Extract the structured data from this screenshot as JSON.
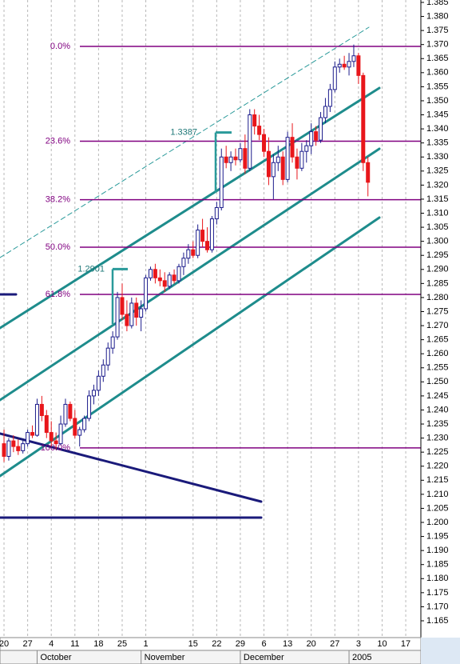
{
  "chart_data": {
    "type": "candlestick",
    "x": [
      0,
      1,
      2,
      3,
      4,
      5,
      6,
      7,
      8,
      9,
      10,
      11,
      12,
      13,
      14,
      15,
      16,
      17,
      18,
      19,
      20,
      21,
      22,
      23,
      24,
      25,
      26,
      27,
      28,
      29,
      30,
      31,
      32,
      33,
      34,
      35,
      36,
      37,
      38,
      39,
      40,
      41,
      42,
      43,
      44,
      45,
      46,
      47,
      48,
      49,
      50,
      51,
      52,
      53,
      54,
      55,
      56,
      57,
      58,
      59,
      60,
      61,
      62,
      63,
      64,
      65,
      66,
      67,
      68,
      69,
      70,
      71,
      72,
      73,
      74,
      75,
      76,
      77
    ],
    "open": [
      1.228,
      1.2235,
      1.229,
      1.227,
      1.2255,
      1.228,
      1.232,
      1.231,
      1.242,
      1.238,
      1.232,
      1.229,
      1.228,
      1.235,
      1.242,
      1.237,
      1.231,
      1.233,
      1.237,
      1.245,
      1.247,
      1.252,
      1.256,
      1.262,
      1.266,
      1.28,
      1.274,
      1.27,
      1.278,
      1.273,
      1.276,
      1.287,
      1.29,
      1.287,
      1.286,
      1.284,
      1.288,
      1.286,
      1.291,
      1.294,
      1.297,
      1.295,
      1.304,
      1.3,
      1.297,
      1.308,
      1.312,
      1.33,
      1.328,
      1.33,
      1.329,
      1.333,
      1.326,
      1.345,
      1.341,
      1.338,
      1.332,
      1.323,
      1.328,
      1.33,
      1.322,
      1.337,
      1.33,
      1.326,
      1.332,
      1.334,
      1.339,
      1.336,
      1.344,
      1.348,
      1.354,
      1.362,
      1.363,
      1.362,
      1.364,
      1.366,
      1.359,
      1.328
    ],
    "high": [
      1.233,
      1.23,
      1.231,
      1.2295,
      1.229,
      1.233,
      1.2345,
      1.244,
      1.245,
      1.24,
      1.236,
      1.232,
      1.238,
      1.244,
      1.243,
      1.24,
      1.234,
      1.238,
      1.247,
      1.249,
      1.254,
      1.258,
      1.264,
      1.268,
      1.282,
      1.285,
      1.279,
      1.28,
      1.28,
      1.279,
      1.288,
      1.291,
      1.292,
      1.29,
      1.289,
      1.289,
      1.29,
      1.292,
      1.296,
      1.299,
      1.3,
      1.306,
      1.308,
      1.305,
      1.309,
      1.314,
      1.333,
      1.334,
      1.332,
      1.333,
      1.335,
      1.338,
      1.347,
      1.347,
      1.345,
      1.34,
      1.337,
      1.331,
      1.334,
      1.332,
      1.339,
      1.342,
      1.333,
      1.335,
      1.336,
      1.342,
      1.341,
      1.346,
      1.351,
      1.356,
      1.364,
      1.365,
      1.366,
      1.367,
      1.37,
      1.367,
      1.36,
      1.33
    ],
    "low": [
      1.2215,
      1.222,
      1.225,
      1.224,
      1.2245,
      1.227,
      1.23,
      1.2305,
      1.236,
      1.23,
      1.227,
      1.226,
      1.2275,
      1.234,
      1.236,
      1.23,
      1.227,
      1.232,
      1.236,
      1.242,
      1.245,
      1.25,
      1.254,
      1.26,
      1.265,
      1.272,
      1.268,
      1.269,
      1.27,
      1.268,
      1.275,
      1.286,
      1.285,
      1.284,
      1.282,
      1.283,
      1.285,
      1.285,
      1.288,
      1.292,
      1.294,
      1.294,
      1.298,
      1.296,
      1.296,
      1.306,
      1.311,
      1.326,
      1.325,
      1.327,
      1.328,
      1.324,
      1.325,
      1.338,
      1.336,
      1.33,
      1.32,
      1.315,
      1.325,
      1.32,
      1.321,
      1.328,
      1.322,
      1.325,
      1.328,
      1.331,
      1.334,
      1.335,
      1.342,
      1.346,
      1.353,
      1.36,
      1.361,
      1.359,
      1.362,
      1.356,
      1.325,
      1.316
    ],
    "close": [
      1.2235,
      1.229,
      1.227,
      1.2255,
      1.228,
      1.232,
      1.231,
      1.242,
      1.238,
      1.232,
      1.229,
      1.228,
      1.235,
      1.242,
      1.237,
      1.231,
      1.233,
      1.237,
      1.245,
      1.247,
      1.252,
      1.256,
      1.262,
      1.266,
      1.28,
      1.274,
      1.27,
      1.278,
      1.273,
      1.276,
      1.287,
      1.29,
      1.287,
      1.286,
      1.284,
      1.288,
      1.286,
      1.291,
      1.294,
      1.297,
      1.295,
      1.304,
      1.3,
      1.297,
      1.308,
      1.312,
      1.33,
      1.328,
      1.33,
      1.329,
      1.333,
      1.326,
      1.345,
      1.341,
      1.338,
      1.332,
      1.323,
      1.328,
      1.33,
      1.322,
      1.337,
      1.33,
      1.326,
      1.332,
      1.334,
      1.339,
      1.336,
      1.344,
      1.348,
      1.354,
      1.362,
      1.363,
      1.362,
      1.364,
      1.366,
      1.359,
      1.328,
      1.321
    ],
    "up_color": "#1c1c8c",
    "down_color": "#e8161b",
    "fib_color": "#800080",
    "grid": true,
    "xlim": [
      -0.85,
      88.2
    ],
    "xticks": [
      {
        "value": 0,
        "label": "20"
      },
      {
        "value": 5,
        "label": "27"
      },
      {
        "value": 10,
        "label": "4"
      },
      {
        "value": 15,
        "label": "11"
      },
      {
        "value": 20,
        "label": "18"
      },
      {
        "value": 25,
        "label": "25"
      },
      {
        "value": 30,
        "label": "1"
      },
      {
        "value": 40,
        "label": "15"
      },
      {
        "value": 45,
        "label": "22"
      },
      {
        "value": 50,
        "label": "29"
      },
      {
        "value": 55,
        "label": "6"
      },
      {
        "value": 60,
        "label": "13"
      },
      {
        "value": 65,
        "label": "20"
      },
      {
        "value": 70,
        "label": "27"
      },
      {
        "value": 75,
        "label": "3"
      },
      {
        "value": 80,
        "label": "10"
      },
      {
        "value": 85,
        "label": "17"
      }
    ],
    "month_ticks": [
      {
        "value": 7,
        "label": "October"
      },
      {
        "value": 29,
        "label": "November"
      },
      {
        "value": 50,
        "label": "December"
      },
      {
        "value": 73,
        "label": "2005"
      }
    ],
    "ylim": [
      1.15902,
      1.38585
    ],
    "yticks": [
      1.385,
      {
        "value": 1.38,
        "label": "1.380"
      },
      1.375,
      {
        "value": 1.37,
        "label": "1.370"
      },
      1.365,
      {
        "value": 1.36,
        "label": "1.360"
      },
      1.355,
      {
        "value": 1.35,
        "label": "1.350"
      },
      1.345,
      {
        "value": 1.34,
        "label": "1.340"
      },
      1.335,
      {
        "value": 1.33,
        "label": "1.330"
      },
      1.325,
      {
        "value": 1.32,
        "label": "1.320"
      },
      1.315,
      {
        "value": 1.31,
        "label": "1.310"
      },
      1.305,
      {
        "value": 1.3,
        "label": "1.300"
      },
      1.295,
      {
        "value": 1.29,
        "label": "1.290"
      },
      1.285,
      {
        "value": 1.28,
        "label": "1.280"
      },
      1.275,
      {
        "value": 1.27,
        "label": "1.270"
      },
      1.265,
      {
        "value": 1.26,
        "label": "1.260"
      },
      1.255,
      {
        "value": 1.25,
        "label": "1.250"
      },
      1.245,
      {
        "value": 1.24,
        "label": "1.240"
      },
      1.235,
      {
        "value": 1.23,
        "label": "1.230"
      },
      1.225,
      {
        "value": 1.22,
        "label": "1.220"
      },
      1.215,
      {
        "value": 1.21,
        "label": "1.210"
      },
      1.205,
      {
        "value": 1.2,
        "label": "1.200"
      },
      1.195,
      {
        "value": 1.19,
        "label": "1.190"
      },
      1.185,
      {
        "value": 1.18,
        "label": "1.180"
      },
      1.175,
      {
        "value": 1.17,
        "label": "1.170"
      },
      1.165
    ],
    "fib_levels": [
      {
        "value": 1.36935,
        "label": "0.0%"
      },
      {
        "value": 1.3356,
        "label": "23.6%"
      },
      {
        "value": 1.3148,
        "label": "38.2%"
      },
      {
        "value": 1.2979,
        "label": "50.0%"
      },
      {
        "value": 1.2811,
        "label": "61.8%"
      },
      {
        "value": 1.22649,
        "label": "100.0%"
      }
    ],
    "annotations": [
      {
        "value": 1.2901
      },
      {
        "value": 1.3387
      }
    ]
  }
}
